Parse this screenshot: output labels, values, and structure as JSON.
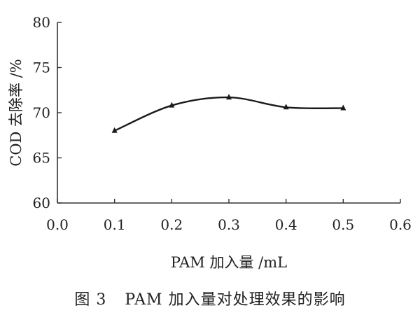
{
  "chart_data": {
    "type": "line",
    "xlabel": "PAM 加入量 /mL",
    "ylabel": "COD 去除率 /%",
    "xlim": [
      0.0,
      0.6
    ],
    "ylim": [
      60,
      80
    ],
    "xticks": [
      "0.0",
      "0.1",
      "0.2",
      "0.3",
      "0.4",
      "0.5",
      "0.6"
    ],
    "yticks": [
      "60",
      "65",
      "70",
      "75",
      "80"
    ],
    "grid": false,
    "series": [
      {
        "x": [
          0.1,
          0.2,
          0.3,
          0.4,
          0.5
        ],
        "y": [
          68.0,
          70.8,
          71.7,
          70.6,
          70.5
        ]
      }
    ],
    "colors": {
      "line": "#1a1a1a",
      "axis": "#333333"
    }
  },
  "caption": {
    "number": "图 3",
    "text": "PAM 加入量对处理效果的影响"
  }
}
